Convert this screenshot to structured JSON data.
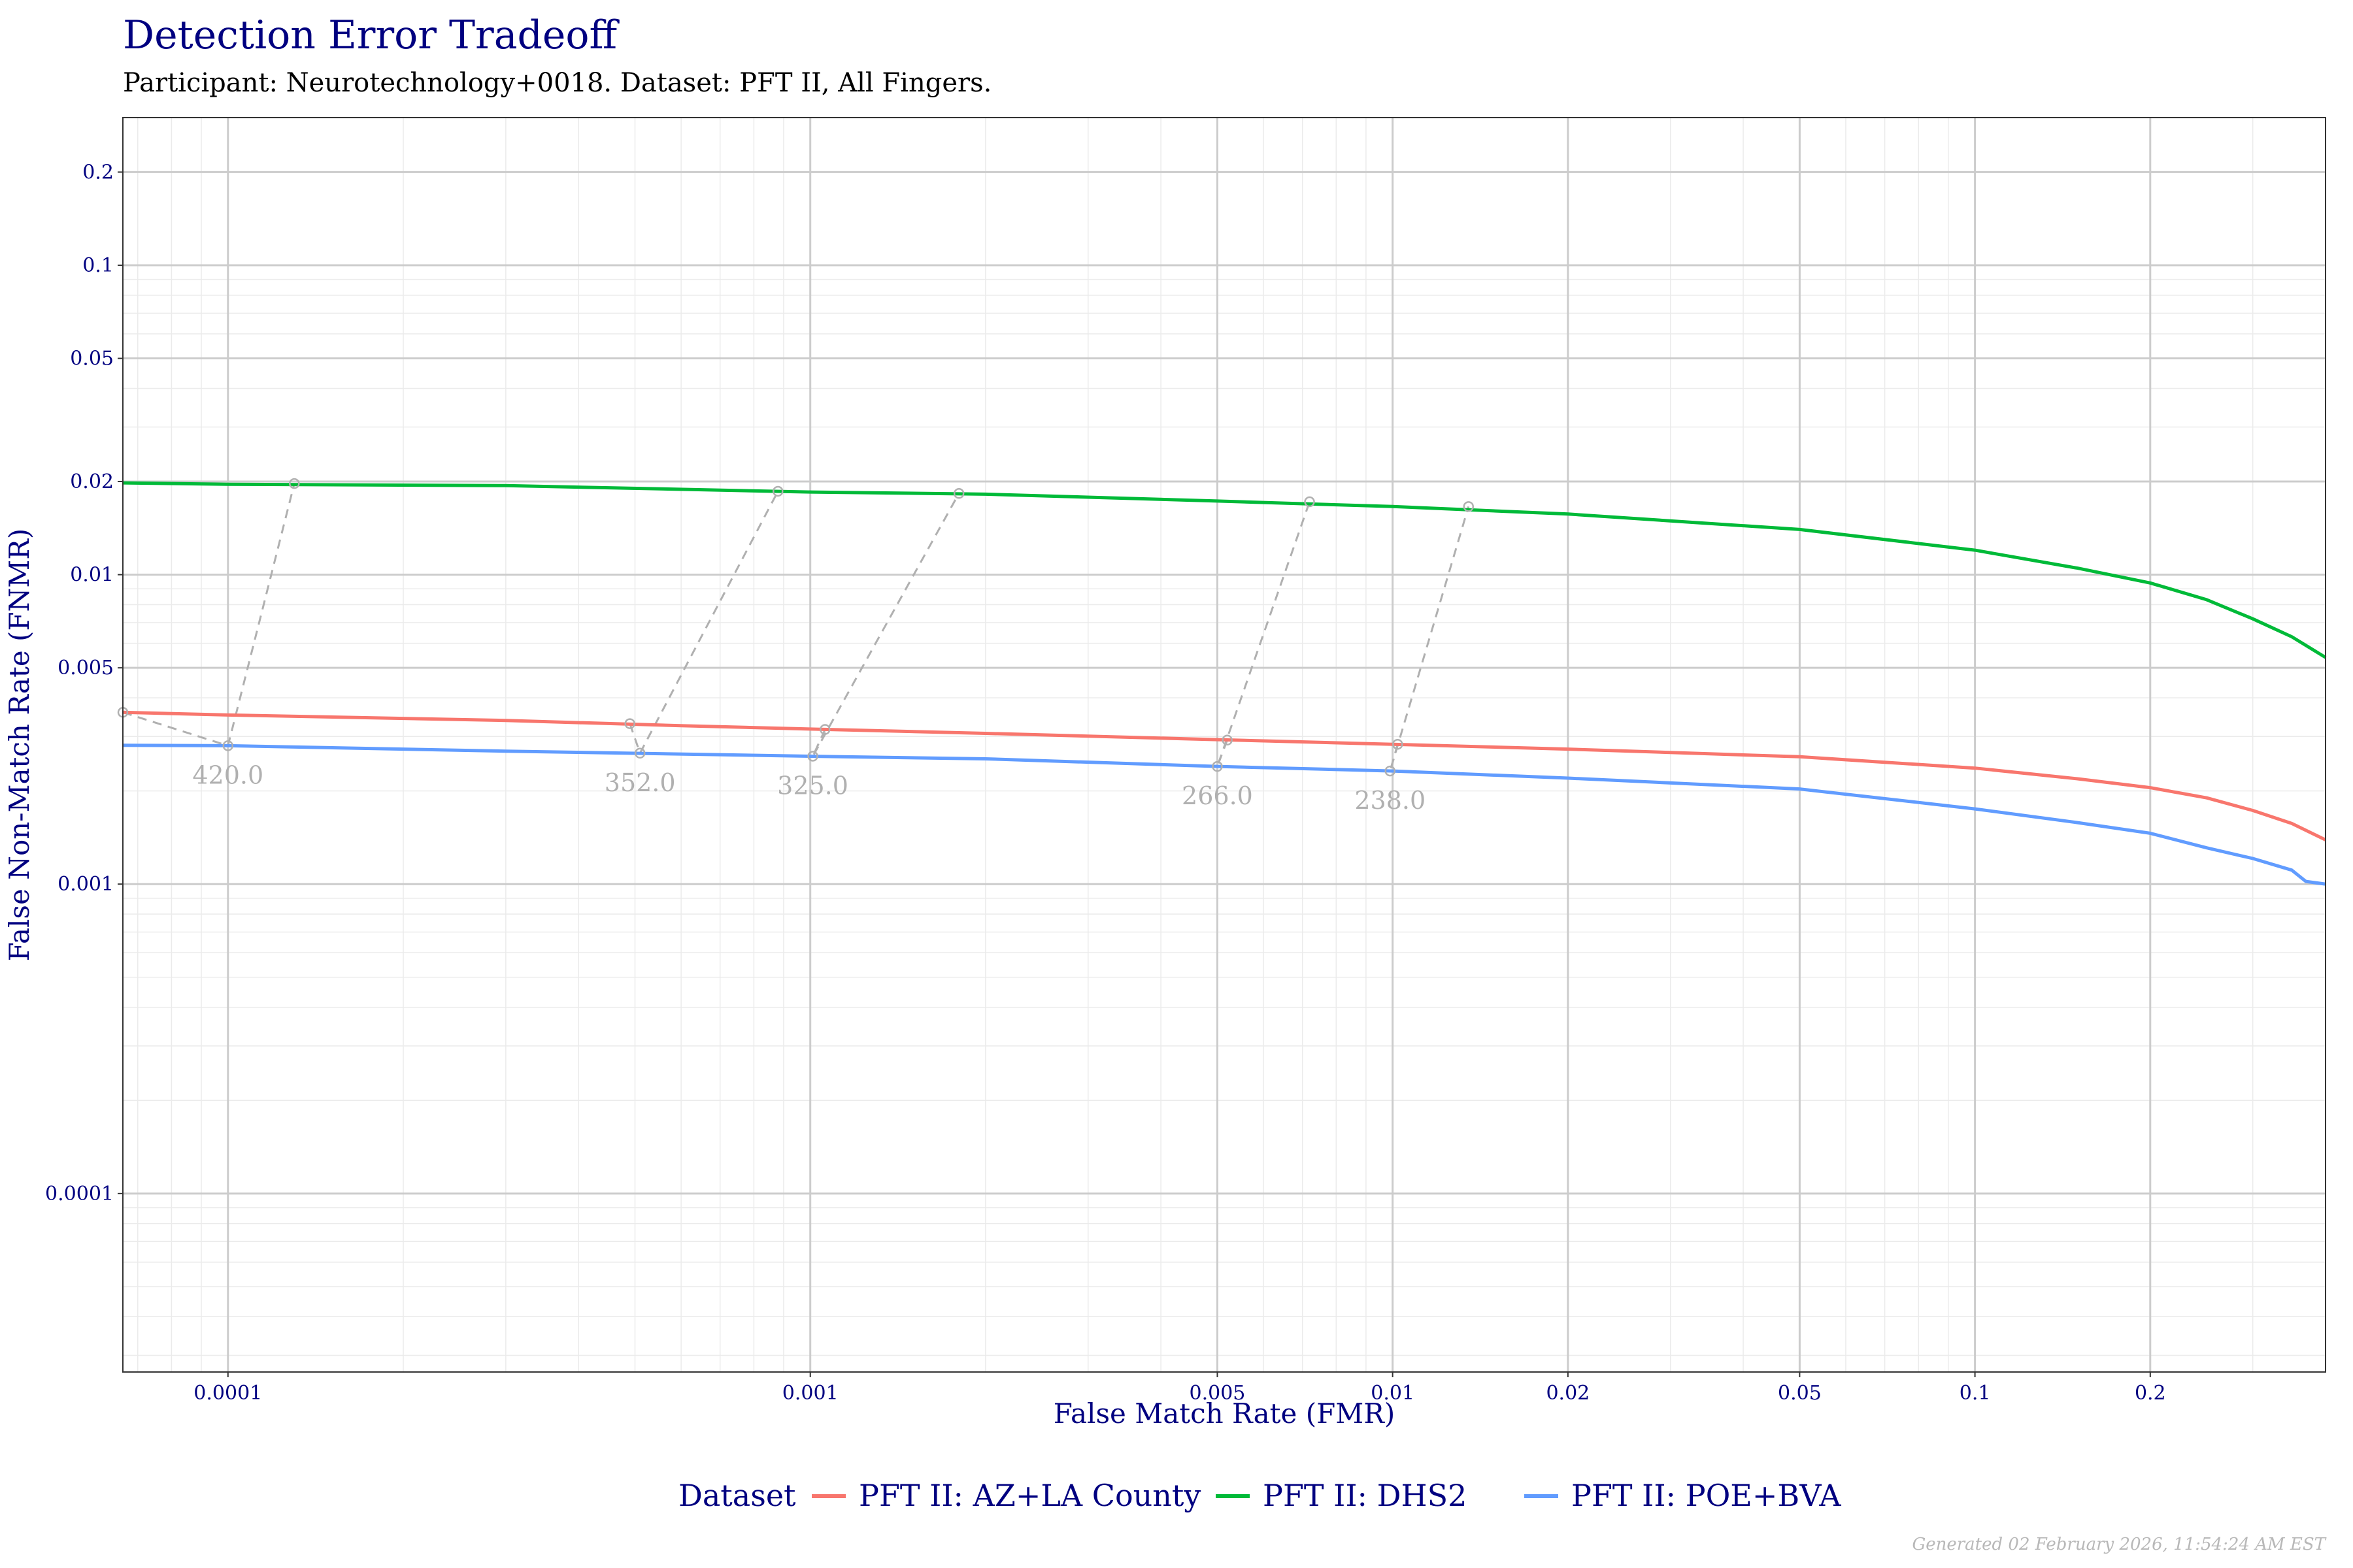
{
  "title": "Detection Error Tradeoff",
  "subtitle": "Participant: Neurotechnology+0018. Dataset: PFT II, All Fingers.",
  "footer": "Generated 02 February 2026, 11:54:24 AM EST",
  "colors": {
    "AZ+LA County": "#F8766D",
    "DHS2": "#00BA38",
    "POE+BVA": "#619CFF",
    "threshold": "#b0b0b0",
    "title": "#000080"
  },
  "chart_data": {
    "type": "line",
    "title": "Detection Error Tradeoff",
    "xlabel": "False Match Rate (FMR)",
    "ylabel": "False Non-Match Rate (FNMR)",
    "xscale": "log",
    "yscale": "log",
    "xlim": [
      6.6e-05,
      0.4
    ],
    "ylim": [
      2.65e-05,
      0.3
    ],
    "xticks": [
      0.0001,
      0.001,
      0.005,
      0.01,
      0.02,
      0.05,
      0.1,
      0.2
    ],
    "xtick_labels": [
      "0.0001",
      "0.001",
      "0.005",
      "0.01",
      "0.02",
      "0.05",
      "0.1",
      "0.2"
    ],
    "yticks": [
      0.0001,
      0.001,
      0.005,
      0.01,
      0.02,
      0.05,
      0.1,
      0.2
    ],
    "ytick_labels": [
      "0.0001",
      "0.001",
      "0.005",
      "0.01",
      "0.02",
      "0.05",
      "0.1",
      "0.2"
    ],
    "grid": true,
    "legend": {
      "title": "Dataset",
      "placement": "bottom"
    },
    "series": [
      {
        "name": "PFT II: AZ+LA County",
        "color": "#F8766D",
        "x": [
          6.6e-05,
          0.0001,
          0.0003,
          0.0006,
          0.001,
          0.002,
          0.005,
          0.01,
          0.02,
          0.05,
          0.1,
          0.15,
          0.2,
          0.25,
          0.3,
          0.35,
          0.4
        ],
        "y": [
          0.00359,
          0.00352,
          0.00338,
          0.00325,
          0.00317,
          0.00307,
          0.00293,
          0.00283,
          0.00273,
          0.00258,
          0.00237,
          0.00219,
          0.00205,
          0.0019,
          0.00173,
          0.00157,
          0.00139
        ]
      },
      {
        "name": "PFT II: DHS2",
        "color": "#00BA38",
        "x": [
          6.6e-05,
          0.0001,
          0.0003,
          0.001,
          0.002,
          0.005,
          0.01,
          0.02,
          0.05,
          0.1,
          0.15,
          0.2,
          0.25,
          0.3,
          0.35,
          0.4
        ],
        "y": [
          0.0198,
          0.0196,
          0.0194,
          0.0185,
          0.0182,
          0.0173,
          0.0166,
          0.0157,
          0.014,
          0.012,
          0.0105,
          0.0094,
          0.0083,
          0.0072,
          0.0063,
          0.0054
        ]
      },
      {
        "name": "PFT II: POE+BVA",
        "color": "#619CFF",
        "x": [
          6.6e-05,
          0.0001,
          0.0003,
          0.001,
          0.002,
          0.005,
          0.01,
          0.02,
          0.05,
          0.1,
          0.15,
          0.2,
          0.25,
          0.3,
          0.35,
          0.37,
          0.4
        ],
        "y": [
          0.00281,
          0.0028,
          0.00269,
          0.00259,
          0.00254,
          0.0024,
          0.00232,
          0.0022,
          0.00203,
          0.00175,
          0.00158,
          0.00146,
          0.00131,
          0.00121,
          0.00111,
          0.00102,
          0.001
        ]
      }
    ],
    "thresholds": [
      {
        "label": "420.0",
        "points": [
          [
            6.6e-05,
            0.00359
          ],
          [
            0.0001,
            0.0028
          ],
          [
            0.00013,
            0.0197
          ]
        ]
      },
      {
        "label": "352.0",
        "points": [
          [
            0.00049,
            0.0033
          ],
          [
            0.00051,
            0.00265
          ],
          [
            0.00088,
            0.0186
          ]
        ]
      },
      {
        "label": "325.0",
        "points": [
          [
            0.00106,
            0.00316
          ],
          [
            0.00101,
            0.00259
          ],
          [
            0.0018,
            0.0183
          ]
        ]
      },
      {
        "label": "266.0",
        "points": [
          [
            0.0052,
            0.00292
          ],
          [
            0.005,
            0.0024
          ],
          [
            0.0072,
            0.0172
          ]
        ]
      },
      {
        "label": "238.0",
        "points": [
          [
            0.0102,
            0.00283
          ],
          [
            0.0099,
            0.00232
          ],
          [
            0.0135,
            0.0166
          ]
        ]
      }
    ]
  }
}
